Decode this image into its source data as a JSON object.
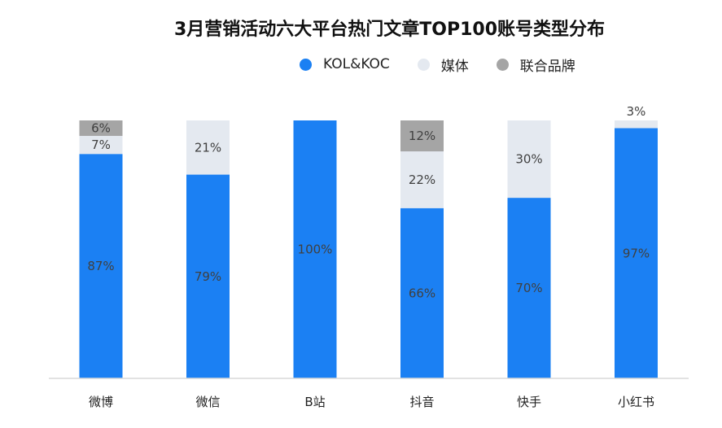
{
  "chart_data": {
    "type": "bar",
    "stacked": true,
    "title": "3月营销活动六大平台热门文章TOP100账号类型分布",
    "categories": [
      "微博",
      "微信",
      "B站",
      "抖音",
      "快手",
      "小红书"
    ],
    "series": [
      {
        "name": "KOL&KOC",
        "color": "#1b80f3",
        "values": [
          87,
          79,
          100,
          66,
          70,
          97
        ],
        "labels": [
          "87%",
          "79%",
          "100%",
          "66%",
          "70%",
          "97%"
        ]
      },
      {
        "name": "媒体",
        "color": "#e4e9f0",
        "values": [
          7,
          21,
          0,
          22,
          30,
          3
        ],
        "labels": [
          "7%",
          "21%",
          "",
          "22%",
          "30%",
          "3%"
        ]
      },
      {
        "name": "联合品牌",
        "color": "#a5a5a5",
        "values": [
          6,
          0,
          0,
          12,
          0,
          0
        ],
        "labels": [
          "6%",
          "",
          "",
          "12%",
          "",
          ""
        ]
      }
    ],
    "ylim": [
      0,
      100
    ],
    "legend_position": "top",
    "grid": false
  }
}
